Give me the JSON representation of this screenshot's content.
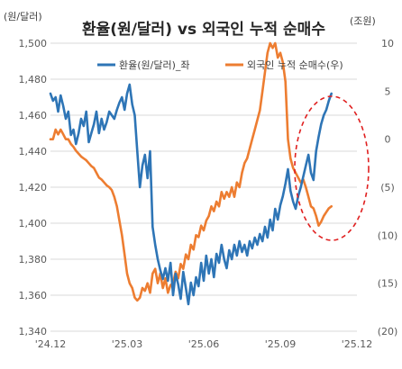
{
  "chart_data": {
    "type": "line",
    "title": "환율(원/달러) vs 외국인 누적 순매수",
    "left_axis_unit": "(원/달러)",
    "right_axis_unit": "(조원)",
    "x_ticks": [
      "'24.12",
      "'25.03",
      "'25.06",
      "'25.09",
      "'25.12"
    ],
    "y_left_ticks": [
      "1,340",
      "1,360",
      "1,380",
      "1,400",
      "1,420",
      "1,440",
      "1,460",
      "1,480",
      "1,500"
    ],
    "y_left_values": [
      1340,
      1360,
      1380,
      1400,
      1420,
      1440,
      1460,
      1480,
      1500
    ],
    "y_right_ticks": [
      "(20)",
      "(15)",
      "(10)",
      "(5)",
      "0",
      "5",
      "10"
    ],
    "y_right_values": [
      -20,
      -15,
      -10,
      -5,
      0,
      5,
      10
    ],
    "ylim_left": [
      1340,
      1500
    ],
    "ylim_right": [
      -20,
      10
    ],
    "xlim": [
      0,
      12
    ],
    "grid": "horizontal",
    "legend_position": "top-right",
    "highlight": {
      "shape": "dashed-ellipse",
      "color": "#e02020"
    },
    "series": [
      {
        "name": "환율(원/달러)_좌",
        "axis": "left",
        "color": "#2e75b6",
        "x": [
          0,
          0.1,
          0.2,
          0.3,
          0.4,
          0.5,
          0.6,
          0.7,
          0.8,
          0.9,
          1.0,
          1.1,
          1.2,
          1.3,
          1.4,
          1.5,
          1.6,
          1.7,
          1.8,
          1.9,
          2.0,
          2.1,
          2.2,
          2.3,
          2.4,
          2.5,
          2.6,
          2.7,
          2.8,
          2.9,
          3.0,
          3.1,
          3.2,
          3.3,
          3.4,
          3.5,
          3.6,
          3.7,
          3.8,
          3.9,
          4.0,
          4.1,
          4.2,
          4.3,
          4.4,
          4.5,
          4.6,
          4.7,
          4.8,
          4.9,
          5.0,
          5.1,
          5.2,
          5.3,
          5.4,
          5.5,
          5.6,
          5.7,
          5.8,
          5.9,
          6.0,
          6.1,
          6.2,
          6.3,
          6.4,
          6.5,
          6.6,
          6.7,
          6.8,
          6.9,
          7.0,
          7.1,
          7.2,
          7.3,
          7.4,
          7.5,
          7.6,
          7.7,
          7.8,
          7.9,
          8.0,
          8.1,
          8.2,
          8.3,
          8.4,
          8.5,
          8.6,
          8.7,
          8.8,
          8.9,
          9.0,
          9.1,
          9.2,
          9.3,
          9.4,
          9.5,
          9.6,
          9.7,
          9.8,
          9.9,
          10.0,
          10.1,
          10.2,
          10.3,
          10.4,
          10.5,
          10.6,
          10.7,
          10.8,
          10.9,
          11.0
        ],
        "values": [
          1472,
          1468,
          1470,
          1462,
          1471,
          1465,
          1458,
          1462,
          1449,
          1452,
          1444,
          1450,
          1458,
          1454,
          1462,
          1445,
          1450,
          1455,
          1462,
          1450,
          1458,
          1452,
          1456,
          1462,
          1460,
          1458,
          1463,
          1467,
          1470,
          1463,
          1472,
          1477,
          1466,
          1460,
          1440,
          1420,
          1432,
          1438,
          1425,
          1440,
          1398,
          1388,
          1380,
          1374,
          1369,
          1375,
          1368,
          1378,
          1360,
          1372,
          1366,
          1358,
          1373,
          1364,
          1355,
          1367,
          1360,
          1370,
          1365,
          1378,
          1368,
          1382,
          1372,
          1380,
          1370,
          1383,
          1378,
          1388,
          1380,
          1375,
          1385,
          1380,
          1388,
          1382,
          1390,
          1384,
          1388,
          1382,
          1390,
          1386,
          1392,
          1388,
          1394,
          1390,
          1398,
          1392,
          1402,
          1396,
          1408,
          1402,
          1410,
          1415,
          1422,
          1430,
          1418,
          1412,
          1408,
          1415,
          1420,
          1426,
          1432,
          1438,
          1428,
          1424,
          1440,
          1448,
          1455,
          1460,
          1463,
          1468,
          1472
        ]
      },
      {
        "name": "외국인 누적 순매수(우)",
        "axis": "right",
        "color": "#ed7d31",
        "x": [
          0,
          0.1,
          0.2,
          0.3,
          0.4,
          0.5,
          0.6,
          0.7,
          0.8,
          0.9,
          1.0,
          1.1,
          1.2,
          1.3,
          1.4,
          1.5,
          1.6,
          1.7,
          1.8,
          1.9,
          2.0,
          2.1,
          2.2,
          2.3,
          2.4,
          2.5,
          2.6,
          2.7,
          2.8,
          2.9,
          3.0,
          3.1,
          3.2,
          3.3,
          3.4,
          3.5,
          3.6,
          3.7,
          3.8,
          3.9,
          4.0,
          4.1,
          4.2,
          4.3,
          4.4,
          4.5,
          4.6,
          4.7,
          4.8,
          4.9,
          5.0,
          5.1,
          5.2,
          5.3,
          5.4,
          5.5,
          5.6,
          5.7,
          5.8,
          5.9,
          6.0,
          6.1,
          6.2,
          6.3,
          6.4,
          6.5,
          6.6,
          6.7,
          6.8,
          6.9,
          7.0,
          7.1,
          7.2,
          7.3,
          7.4,
          7.5,
          7.6,
          7.7,
          7.8,
          7.9,
          8.0,
          8.1,
          8.2,
          8.3,
          8.4,
          8.5,
          8.6,
          8.7,
          8.8,
          8.9,
          9.0,
          9.1,
          9.2,
          9.3,
          9.4,
          9.5,
          9.6,
          9.7,
          9.8,
          9.9,
          10.0,
          10.1,
          10.2,
          10.3,
          10.4,
          10.5,
          10.6,
          10.7,
          10.8,
          10.9,
          11.0
        ],
        "values": [
          0,
          0,
          1,
          0.5,
          1,
          0.5,
          0,
          0,
          -0.5,
          -0.8,
          -1.2,
          -1.5,
          -1.8,
          -2,
          -2.2,
          -2.5,
          -2.8,
          -3,
          -3.5,
          -4,
          -4.2,
          -4.5,
          -4.8,
          -5,
          -5.3,
          -6,
          -7,
          -8.5,
          -10,
          -12,
          -14,
          -15,
          -15.5,
          -16.5,
          -16.8,
          -16.5,
          -15.5,
          -15.8,
          -15,
          -16,
          -14,
          -13.5,
          -15,
          -14,
          -15.5,
          -14.5,
          -16,
          -15.2,
          -15,
          -13.8,
          -14.5,
          -13,
          -13.5,
          -12,
          -12.5,
          -11,
          -11.5,
          -10,
          -10.2,
          -9,
          -9.5,
          -8.5,
          -8,
          -7,
          -7.5,
          -6.5,
          -7,
          -5.5,
          -6.2,
          -5.5,
          -6,
          -5,
          -6,
          -4.5,
          -5,
          -3.5,
          -2.5,
          -2,
          -1,
          0,
          1,
          2,
          3,
          5,
          7,
          9,
          10,
          9.5,
          10,
          8.5,
          9,
          8,
          6,
          0,
          -2,
          -3,
          -3.5,
          -4,
          -4.5,
          -4.2,
          -5,
          -6,
          -7,
          -7.2,
          -8,
          -9,
          -8.6,
          -8,
          -7.6,
          -7.2,
          -7
        ]
      }
    ]
  }
}
